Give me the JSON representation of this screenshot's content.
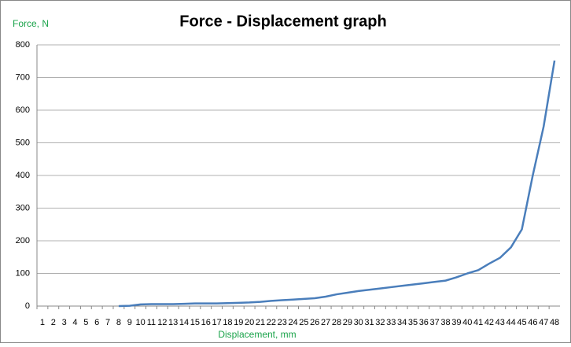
{
  "chart_data": {
    "type": "line",
    "title": "Force - Displacement graph",
    "y_label": "Force, N",
    "x_label": "Displacement, mm",
    "categories": [
      "1",
      "2",
      "3",
      "4",
      "5",
      "6",
      "7",
      "8",
      "9",
      "10",
      "11",
      "12",
      "13",
      "14",
      "15",
      "16",
      "17",
      "18",
      "19",
      "20",
      "21",
      "22",
      "23",
      "24",
      "25",
      "26",
      "27",
      "28",
      "29",
      "30",
      "31",
      "32",
      "33",
      "34",
      "35",
      "36",
      "37",
      "38",
      "39",
      "40",
      "41",
      "42",
      "43",
      "44",
      "45",
      "46",
      "47",
      "48"
    ],
    "series": [
      {
        "name": "Force",
        "color": "#4a7ebb",
        "values": [
          null,
          null,
          null,
          null,
          null,
          null,
          null,
          0,
          1,
          5,
          6,
          6,
          6,
          7,
          8,
          8,
          8,
          9,
          10,
          11,
          13,
          16,
          18,
          20,
          22,
          24,
          29,
          36,
          41,
          46,
          50,
          54,
          58,
          62,
          66,
          70,
          74,
          78,
          88,
          100,
          110,
          130,
          148,
          180,
          235,
          400,
          550,
          752
        ]
      }
    ],
    "ylim": [
      0,
      800
    ],
    "yticks": [
      0,
      100,
      200,
      300,
      400,
      500,
      600,
      700,
      800
    ],
    "grid": true
  }
}
